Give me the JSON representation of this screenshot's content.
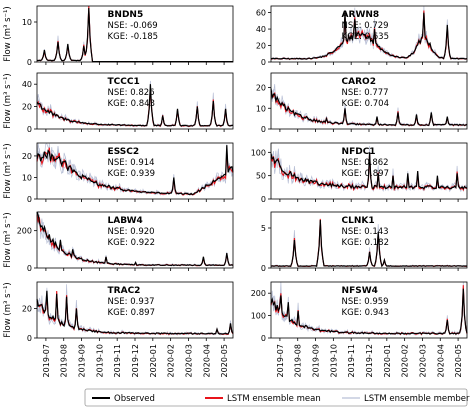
{
  "figure": {
    "y_axis_label": "Flow (m³ s⁻¹)",
    "x_tick_labels": [
      "2019-07",
      "2019-08",
      "2019-09",
      "2019-10",
      "2019-11",
      "2019-12",
      "2020-01",
      "2020-02",
      "2020-03",
      "2020-04",
      "2020-05"
    ],
    "legend": [
      {
        "label": "Observed",
        "color": "#000000"
      },
      {
        "label": "LSTM ensemble mean",
        "color": "#e8141b"
      },
      {
        "label": "LSTM ensemble member",
        "color": "#b9c0d6"
      }
    ]
  },
  "chart_data": [
    {
      "type": "line",
      "station": "BNDN5",
      "nse": "NSE: -0.069",
      "kge": "KGE: -0.185",
      "yticks": [
        0,
        10
      ],
      "ylim": [
        0,
        14
      ],
      "shape": "bndn5",
      "peaks": [
        {
          "x": 0.04,
          "y": 3
        },
        {
          "x": 0.11,
          "y": 5
        },
        {
          "x": 0.16,
          "y": 4.5
        },
        {
          "x": 0.24,
          "y": 4
        },
        {
          "x": 0.265,
          "y": 13.5
        }
      ]
    },
    {
      "type": "line",
      "station": "ARWN8",
      "nse": "NSE: 0.729",
      "kge": "KGE: 0.635",
      "yticks": [
        0,
        20,
        40,
        60
      ],
      "ylim": [
        0,
        68
      ],
      "shape": "arwn8",
      "peaks": [
        {
          "x": 0.38,
          "y": 60
        },
        {
          "x": 0.43,
          "y": 52
        },
        {
          "x": 0.53,
          "y": 40
        },
        {
          "x": 0.78,
          "y": 60
        },
        {
          "x": 0.9,
          "y": 45
        }
      ]
    },
    {
      "type": "line",
      "station": "TCCC1",
      "nse": "NSE: 0.826",
      "kge": "KGE: 0.843",
      "yticks": [
        0,
        20,
        40
      ],
      "ylim": [
        0,
        50
      ],
      "shape": "decay",
      "start": 24,
      "base": 3,
      "peaks": [
        {
          "x": 0.58,
          "y": 40
        },
        {
          "x": 0.64,
          "y": 12
        },
        {
          "x": 0.72,
          "y": 18
        },
        {
          "x": 0.82,
          "y": 20
        },
        {
          "x": 0.9,
          "y": 25
        },
        {
          "x": 0.96,
          "y": 18
        }
      ]
    },
    {
      "type": "line",
      "station": "CARO2",
      "nse": "NSE: 0.777",
      "kge": "KGE: 0.704",
      "yticks": [
        0,
        10,
        20
      ],
      "ylim": [
        0,
        27
      ],
      "shape": "decay",
      "start": 18,
      "base": 2,
      "peaks": [
        {
          "x": 0.18,
          "y": 6
        },
        {
          "x": 0.28,
          "y": 5
        },
        {
          "x": 0.38,
          "y": 10
        },
        {
          "x": 0.54,
          "y": 6
        },
        {
          "x": 0.65,
          "y": 8
        },
        {
          "x": 0.74,
          "y": 7
        },
        {
          "x": 0.82,
          "y": 8
        },
        {
          "x": 0.9,
          "y": 6
        }
      ]
    },
    {
      "type": "line",
      "station": "ESSC2",
      "nse": "NSE: 0.914",
      "kge": "KGE: 0.939",
      "yticks": [
        0,
        10,
        20
      ],
      "ylim": [
        0,
        26
      ],
      "shape": "essc2",
      "start": 20,
      "base": 2,
      "peaks": [
        {
          "x": 0.04,
          "y": 22
        },
        {
          "x": 0.08,
          "y": 20
        },
        {
          "x": 0.12,
          "y": 18
        },
        {
          "x": 0.16,
          "y": 12
        },
        {
          "x": 0.7,
          "y": 10
        },
        {
          "x": 0.97,
          "y": 25
        }
      ]
    },
    {
      "type": "line",
      "station": "NFDC1",
      "nse": "NSE: 0.862",
      "kge": "KGE: 0.897",
      "yticks": [
        0,
        50,
        100
      ],
      "ylim": [
        0,
        120
      ],
      "shape": "decay",
      "start": 95,
      "base": 25,
      "peaks": [
        {
          "x": 0.5,
          "y": 100
        },
        {
          "x": 0.55,
          "y": 55
        },
        {
          "x": 0.62,
          "y": 50
        },
        {
          "x": 0.7,
          "y": 55
        },
        {
          "x": 0.75,
          "y": 60
        },
        {
          "x": 0.85,
          "y": 50
        },
        {
          "x": 0.95,
          "y": 55
        }
      ]
    },
    {
      "type": "line",
      "station": "LABW4",
      "nse": "NSE: 0.920",
      "kge": "KGE: 0.922",
      "yticks": [
        0,
        200
      ],
      "ylim": [
        0,
        300
      ],
      "shape": "decay",
      "start": 270,
      "base": 15,
      "peaks": [
        {
          "x": 0.06,
          "y": 180
        },
        {
          "x": 0.12,
          "y": 150
        },
        {
          "x": 0.18,
          "y": 100
        },
        {
          "x": 0.35,
          "y": 60
        },
        {
          "x": 0.5,
          "y": 30
        },
        {
          "x": 0.85,
          "y": 60
        },
        {
          "x": 0.97,
          "y": 80
        }
      ]
    },
    {
      "type": "line",
      "station": "CLNK1",
      "nse": "NSE: 0.143",
      "kge": "KGE: 0.182",
      "yticks": [
        0,
        5
      ],
      "ylim": [
        0,
        7
      ],
      "shape": "clnk1",
      "peaks": [
        {
          "x": 0.12,
          "y": 3.5
        },
        {
          "x": 0.25,
          "y": 6
        },
        {
          "x": 0.5,
          "y": 2
        },
        {
          "x": 0.55,
          "y": 4.5
        },
        {
          "x": 0.58,
          "y": 1
        }
      ]
    },
    {
      "type": "line",
      "station": "TRAC2",
      "nse": "NSE: 0.937",
      "kge": "KGE: 0.897",
      "yticks": [
        0,
        20
      ],
      "ylim": [
        0,
        38
      ],
      "shape": "decay",
      "start": 25,
      "base": 3,
      "peaks": [
        {
          "x": 0.05,
          "y": 32
        },
        {
          "x": 0.1,
          "y": 30
        },
        {
          "x": 0.15,
          "y": 28
        },
        {
          "x": 0.2,
          "y": 20
        },
        {
          "x": 0.92,
          "y": 6
        },
        {
          "x": 0.99,
          "y": 10
        }
      ]
    },
    {
      "type": "line",
      "station": "NFSW4",
      "nse": "NSE: 0.959",
      "kge": "KGE: 0.943",
      "yticks": [
        0,
        100,
        200
      ],
      "ylim": [
        0,
        250
      ],
      "shape": "decay",
      "start": 170,
      "base": 20,
      "peaks": [
        {
          "x": 0.05,
          "y": 190
        },
        {
          "x": 0.09,
          "y": 160
        },
        {
          "x": 0.14,
          "y": 120
        },
        {
          "x": 0.9,
          "y": 80
        },
        {
          "x": 0.98,
          "y": 220
        }
      ]
    }
  ]
}
